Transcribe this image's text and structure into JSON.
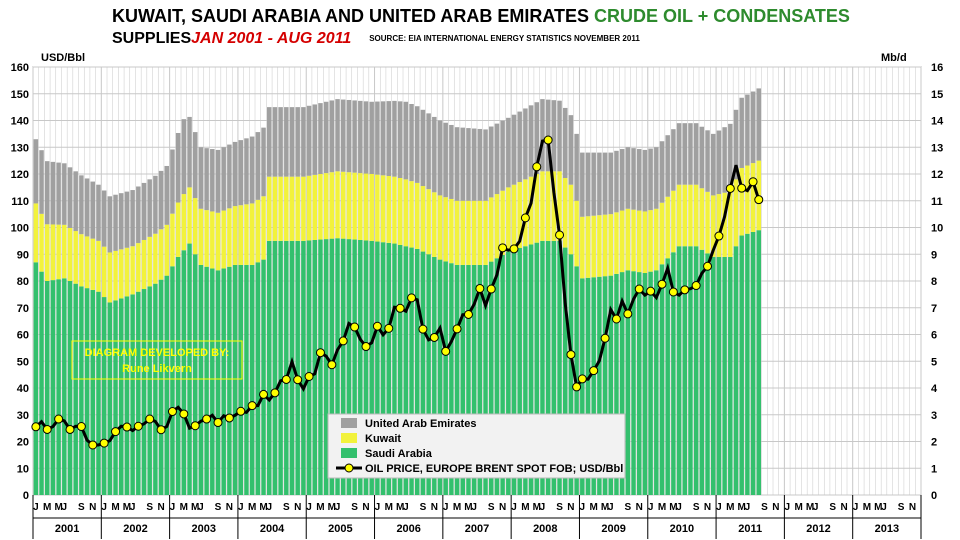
{
  "title": {
    "line1_black": "KUWAIT, SAUDI ARABIA AND UNITED ARAB EMIRATES",
    "line1_green": "CRUDE OIL  + CONDENSATES",
    "line2_black": "SUPPLIES",
    "line2_red": "JAN 2001 - AUG 2011",
    "source": "SOURCE: EIA INTERNATIONAL ENERGY STATISTICS NOVEMBER 2011"
  },
  "credit": {
    "line1": "DIAGRAM DEVELOPED BY:",
    "line2": "Rune Likvern"
  },
  "colors": {
    "saudi": "#33c06d",
    "kuwait": "#f2f23c",
    "uae": "#a0a0a0",
    "price": "#000000",
    "marker": "#ffff00",
    "grid": "#c8c8c8",
    "plot_bg": "#ffffff"
  },
  "chart_data": {
    "type": "bar",
    "subtype": "stacked-bar-with-line",
    "title": "KUWAIT, SAUDI ARABIA AND UNITED ARAB EMIRATES CRUDE OIL + CONDENSATES SUPPLIES JAN 2001 - AUG 2011",
    "left_axis": {
      "label": "USD/Bbl",
      "min": 0,
      "max": 160,
      "step": 10
    },
    "right_axis": {
      "label": "Mb/d",
      "min": 0,
      "max": 16,
      "step": 1
    },
    "grid": true,
    "legend_position": "bottom-center",
    "years": [
      "2001",
      "2002",
      "2003",
      "2004",
      "2005",
      "2006",
      "2007",
      "2008",
      "2009",
      "2010",
      "2011",
      "2012",
      "2013"
    ],
    "month_ticks": [
      "J",
      "M",
      "M",
      "J",
      "S",
      "N"
    ],
    "start": "2001-01",
    "end": "2011-08",
    "stack_series": [
      {
        "name": "Saudi Arabia",
        "color": "#33c06d",
        "axis": "right",
        "yearly_mbd": [
          8.0,
          7.5,
          8.7,
          9.1,
          9.5,
          9.2,
          8.7,
          9.3,
          8.2,
          8.4,
          9.2
        ],
        "keypoints": [
          [
            "2001-01",
            8.7
          ],
          [
            "2001-03",
            8.0
          ],
          [
            "2001-06",
            8.1
          ],
          [
            "2001-09",
            7.8
          ],
          [
            "2001-12",
            7.6
          ],
          [
            "2002-02",
            7.2
          ],
          [
            "2002-06",
            7.5
          ],
          [
            "2002-10",
            7.9
          ],
          [
            "2002-12",
            8.2
          ],
          [
            "2003-02",
            8.9
          ],
          [
            "2003-04",
            9.4
          ],
          [
            "2003-06",
            8.6
          ],
          [
            "2003-09",
            8.4
          ],
          [
            "2003-12",
            8.6
          ],
          [
            "2004-03",
            8.6
          ],
          [
            "2004-05",
            8.8
          ],
          [
            "2004-06",
            9.5
          ],
          [
            "2004-12",
            9.5
          ],
          [
            "2005-06",
            9.6
          ],
          [
            "2005-12",
            9.5
          ],
          [
            "2006-04",
            9.4
          ],
          [
            "2006-08",
            9.2
          ],
          [
            "2006-12",
            8.8
          ],
          [
            "2007-03",
            8.6
          ],
          [
            "2007-08",
            8.6
          ],
          [
            "2007-12",
            9.1
          ],
          [
            "2008-06",
            9.5
          ],
          [
            "2008-09",
            9.5
          ],
          [
            "2008-11",
            9.0
          ],
          [
            "2009-01",
            8.1
          ],
          [
            "2009-06",
            8.2
          ],
          [
            "2009-09",
            8.4
          ],
          [
            "2009-12",
            8.3
          ],
          [
            "2010-02",
            8.4
          ],
          [
            "2010-06",
            9.3
          ],
          [
            "2010-09",
            9.3
          ],
          [
            "2010-12",
            8.9
          ],
          [
            "2011-03",
            8.9
          ],
          [
            "2011-05",
            9.7
          ],
          [
            "2011-08",
            9.9
          ]
        ]
      },
      {
        "name": "Kuwait",
        "color": "#f2f23c",
        "axis": "right",
        "yearly_mbd": [
          1.9,
          1.8,
          2.2,
          2.4,
          2.5,
          2.5,
          2.4,
          2.6,
          2.3,
          2.3,
          2.5
        ],
        "keypoints": [
          [
            "2001-01",
            2.2
          ],
          [
            "2001-06",
            2.0
          ],
          [
            "2001-12",
            1.9
          ],
          [
            "2002-06",
            1.8
          ],
          [
            "2002-12",
            1.9
          ],
          [
            "2003-03",
            2.1
          ],
          [
            "2003-06",
            2.1
          ],
          [
            "2003-12",
            2.2
          ],
          [
            "2004-06",
            2.4
          ],
          [
            "2004-12",
            2.4
          ],
          [
            "2005-06",
            2.5
          ],
          [
            "2005-12",
            2.5
          ],
          [
            "2006-06",
            2.5
          ],
          [
            "2006-12",
            2.4
          ],
          [
            "2007-06",
            2.4
          ],
          [
            "2007-12",
            2.4
          ],
          [
            "2008-06",
            2.6
          ],
          [
            "2008-11",
            2.6
          ],
          [
            "2009-01",
            2.3
          ],
          [
            "2009-06",
            2.3
          ],
          [
            "2009-12",
            2.3
          ],
          [
            "2010-06",
            2.3
          ],
          [
            "2010-12",
            2.3
          ],
          [
            "2011-04",
            2.5
          ],
          [
            "2011-08",
            2.6
          ]
        ]
      },
      {
        "name": "United Arab Emirates",
        "color": "#a0a0a0",
        "axis": "right",
        "yearly_mbd": [
          2.3,
          2.1,
          2.4,
          2.6,
          2.7,
          2.9,
          2.7,
          2.7,
          2.3,
          2.3,
          2.5
        ],
        "keypoints": [
          [
            "2001-01",
            2.4
          ],
          [
            "2001-06",
            2.3
          ],
          [
            "2001-12",
            2.1
          ],
          [
            "2002-06",
            2.1
          ],
          [
            "2002-12",
            2.2
          ],
          [
            "2003-03",
            2.8
          ],
          [
            "2003-06",
            2.3
          ],
          [
            "2003-12",
            2.4
          ],
          [
            "2004-06",
            2.6
          ],
          [
            "2004-12",
            2.6
          ],
          [
            "2005-06",
            2.7
          ],
          [
            "2005-12",
            2.7
          ],
          [
            "2006-06",
            2.9
          ],
          [
            "2006-12",
            2.8
          ],
          [
            "2007-06",
            2.7
          ],
          [
            "2007-12",
            2.6
          ],
          [
            "2008-06",
            2.7
          ],
          [
            "2008-11",
            2.6
          ],
          [
            "2009-01",
            2.4
          ],
          [
            "2009-06",
            2.3
          ],
          [
            "2009-12",
            2.3
          ],
          [
            "2010-06",
            2.3
          ],
          [
            "2010-12",
            2.3
          ],
          [
            "2011-04",
            2.6
          ],
          [
            "2011-08",
            2.7
          ]
        ]
      }
    ],
    "line_series": {
      "name": "OIL PRICE, EUROPE BRENT SPOT FOB; USD/Bbl",
      "axis": "left",
      "color": "#000000",
      "marker": "#ffff00",
      "monthly_usd": [
        25.5,
        27.4,
        24.5,
        25.6,
        28.4,
        27.7,
        24.5,
        25.7,
        25.6,
        20.5,
        18.7,
        18.7,
        19.4,
        20.3,
        23.7,
        25.7,
        25.4,
        24.1,
        25.7,
        26.6,
        28.4,
        27.5,
        24.4,
        25.6,
        31.2,
        32.8,
        30.3,
        25.0,
        25.9,
        27.6,
        28.4,
        29.8,
        27.1,
        29.6,
        28.8,
        29.8,
        31.3,
        30.9,
        33.4,
        33.4,
        37.6,
        35.5,
        38.2,
        42.7,
        43.2,
        49.8,
        43.1,
        39.7,
        44.3,
        45.3,
        53.2,
        51.9,
        48.7,
        54.3,
        57.6,
        64.1,
        62.8,
        58.2,
        55.5,
        56.9,
        63.1,
        59.9,
        62.3,
        70.2,
        69.8,
        68.7,
        73.7,
        73.0,
        62.0,
        58.0,
        58.9,
        62.4,
        53.7,
        57.4,
        62.1,
        67.4,
        67.5,
        71.3,
        77.2,
        70.8,
        77.0,
        82.3,
        92.4,
        91.5,
        92.0,
        94.9,
        103.6,
        109.1,
        122.7,
        132.3,
        132.7,
        113.2,
        97.2,
        71.6,
        52.5,
        40.4,
        43.4,
        43.3,
        46.5,
        50.2,
        58.6,
        69.3,
        65.8,
        72.5,
        67.7,
        73.2,
        77.0,
        74.7,
        76.2,
        73.8,
        78.8,
        84.8,
        75.9,
        74.7,
        76.7,
        77.1,
        78.3,
        82.9,
        85.5,
        91.5,
        96.8,
        104.1,
        114.6,
        123.3,
        114.7,
        113.8,
        117.1,
        110.4
      ]
    },
    "legend": [
      "United Arab Emirates",
      "Kuwait",
      "Saudi Arabia",
      "OIL PRICE, EUROPE BRENT SPOT FOB; USD/Bbl"
    ]
  }
}
